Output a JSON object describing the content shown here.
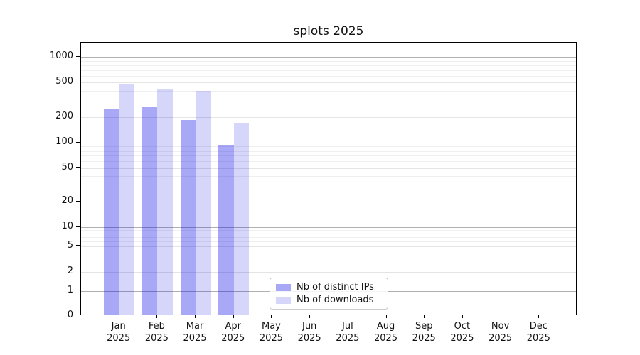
{
  "chart_data": {
    "type": "bar",
    "title": "splots 2025",
    "categories": [
      "Jan",
      "Feb",
      "Mar",
      "Apr",
      "May",
      "Jun",
      "Jul",
      "Aug",
      "Sep",
      "Oct",
      "Nov",
      "Dec"
    ],
    "category_year": "2025",
    "series": [
      {
        "name": "Nb of distinct IPs",
        "color": "rgba(0,0,230,0.34)",
        "values": [
          250,
          260,
          185,
          95,
          0,
          0,
          0,
          0,
          0,
          0,
          0,
          0
        ]
      },
      {
        "name": "Nb of downloads",
        "color": "rgba(0,0,230,0.16)",
        "values": [
          480,
          415,
          400,
          170,
          0,
          0,
          0,
          0,
          0,
          0,
          0,
          0
        ]
      }
    ],
    "y_axis": {
      "scale": "log-with-zero",
      "ticks": [
        0,
        1,
        2,
        5,
        10,
        20,
        50,
        100,
        200,
        500,
        1000
      ],
      "decade_ticks": [
        1,
        10,
        100,
        1000
      ],
      "top_value": 1450
    },
    "x_axis": {
      "tick_style": "two-line month + year"
    },
    "grid": true,
    "legend_position": "lower center-left inside plot"
  }
}
